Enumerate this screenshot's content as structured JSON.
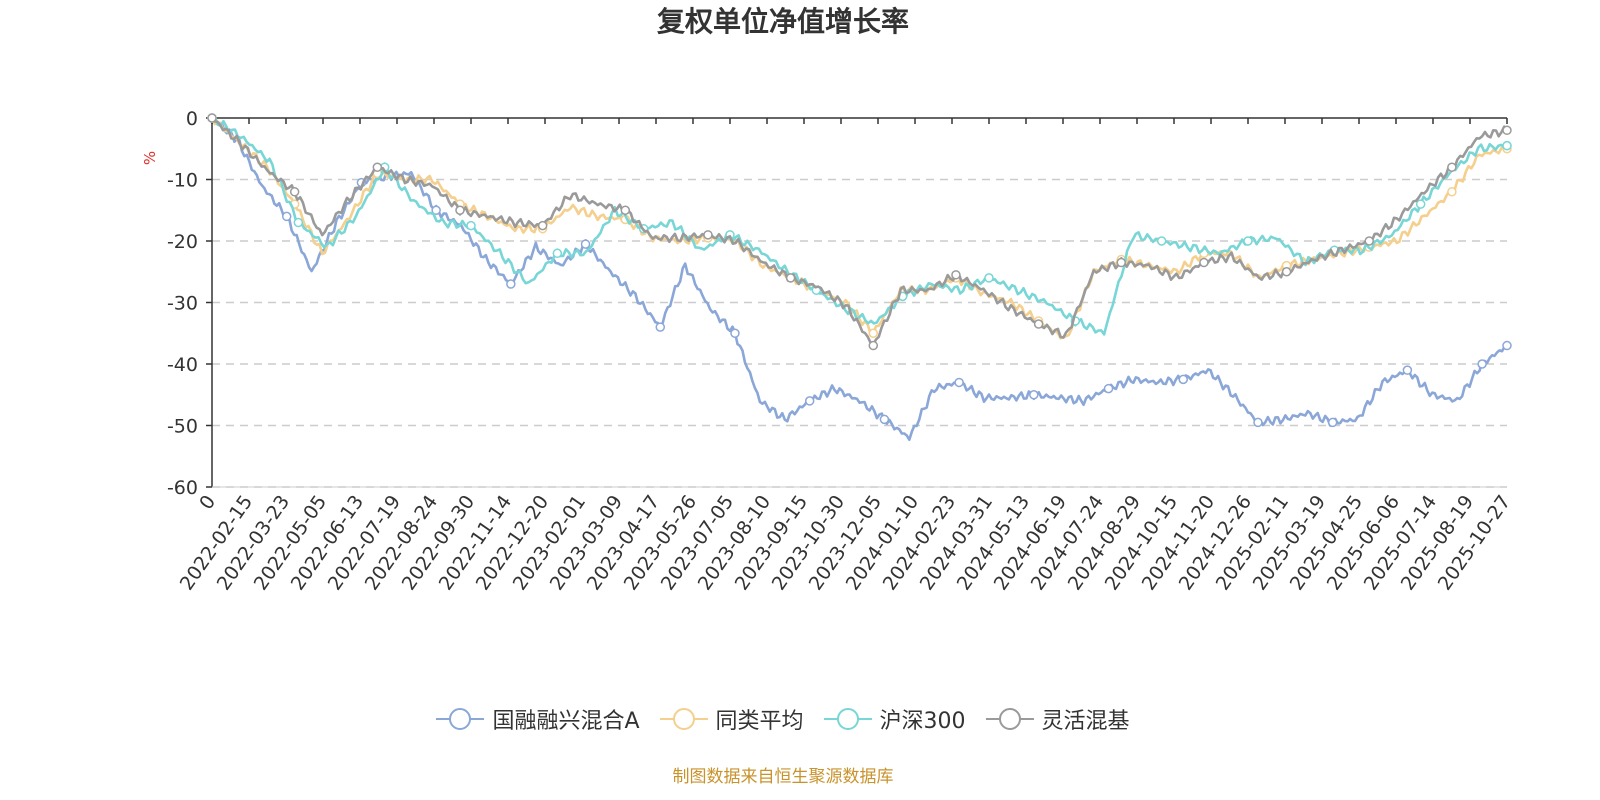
{
  "chart_data": {
    "type": "line",
    "title": "复权单位净值增长率",
    "ylabel": "%",
    "ylim": [
      -60,
      0
    ],
    "yticks": [
      "0",
      "-10",
      "-20",
      "-30",
      "-40",
      "-50",
      "-60"
    ],
    "grid": true,
    "legend_position": "bottom",
    "x_labels": [
      "0",
      "2022-02-15",
      "2022-03-23",
      "2022-05-05",
      "2022-06-13",
      "2022-07-19",
      "2022-08-24",
      "2022-09-30",
      "2022-11-14",
      "2022-12-20",
      "2023-02-01",
      "2023-03-09",
      "2023-04-17",
      "2023-05-26",
      "2023-07-05",
      "2023-08-10",
      "2023-09-15",
      "2023-10-30",
      "2023-12-05",
      "2024-01-10",
      "2024-02-23",
      "2024-03-31",
      "2024-05-13",
      "2024-06-19",
      "2024-07-24",
      "2024-08-29",
      "2024-10-15",
      "2024-11-20",
      "2024-12-26",
      "2025-02-11",
      "2025-03-19",
      "2025-04-25",
      "2025-06-06",
      "2025-07-14",
      "2025-08-19",
      "2025-10-27"
    ],
    "series": [
      {
        "name": "国融融兴混合A",
        "color": "#8ba7d8",
        "values": [
          0,
          -3.5,
          -11,
          -16,
          -25,
          -17,
          -10.5,
          -9.5,
          -9,
          -15,
          -17.5,
          -23,
          -27,
          -21,
          -24,
          -20.5,
          -25,
          -29,
          -34,
          -24,
          -31,
          -35,
          -46,
          -49,
          -46,
          -44,
          -46,
          -49,
          -52,
          -44,
          -43,
          -45.5,
          -45.5,
          -45,
          -45.5,
          -46,
          -44,
          -42.5,
          -43,
          -42.5,
          -41,
          -45,
          -49.5,
          -49,
          -48,
          -49.5,
          -49,
          -43,
          -41,
          -45,
          -46,
          -40,
          -37
        ]
      },
      {
        "name": "同类平均",
        "color": "#f5cf8d",
        "values": [
          0,
          -4,
          -8,
          -14,
          -22,
          -16,
          -9,
          -10,
          -10,
          -14,
          -16,
          -18,
          -18,
          -14.5,
          -16,
          -16.5,
          -19.5,
          -20,
          -19.5,
          -20,
          -24,
          -26,
          -28,
          -30,
          -35,
          -28,
          -28,
          -26,
          -28.5,
          -30,
          -33,
          -36,
          -25,
          -23,
          -24,
          -25,
          -22,
          -22,
          -26,
          -24,
          -23,
          -22,
          -21,
          -20,
          -16,
          -12,
          -6,
          -5
        ]
      },
      {
        "name": "沪深300",
        "color": "#78d6d6",
        "values": [
          0,
          -3,
          -7,
          -17,
          -21,
          -16,
          -8,
          -13.5,
          -17,
          -17.5,
          -22,
          -27,
          -22,
          -22,
          -15,
          -18,
          -17,
          -21.5,
          -19,
          -21.5,
          -25,
          -28,
          -31,
          -33.5,
          -29,
          -27,
          -28,
          -26,
          -28,
          -30,
          -33,
          -35,
          -19,
          -20,
          -21,
          -22,
          -20,
          -19.5,
          -23.5,
          -21.5,
          -21.5,
          -19,
          -14,
          -9,
          -5,
          -4.5
        ]
      },
      {
        "name": "灵活混基",
        "color": "#9a9a9a",
        "values": [
          0,
          -4,
          -8.5,
          -12,
          -19,
          -13,
          -8,
          -10,
          -11,
          -15,
          -16,
          -17,
          -17.5,
          -12.5,
          -14,
          -15,
          -19.5,
          -19.5,
          -19,
          -20,
          -23.5,
          -26,
          -27.5,
          -30.5,
          -37,
          -28,
          -28,
          -25.5,
          -28,
          -31,
          -33.5,
          -35.5,
          -25,
          -23.5,
          -24,
          -26,
          -23.5,
          -22.5,
          -26,
          -25,
          -23,
          -21.5,
          -20,
          -16.5,
          -12,
          -8,
          -3,
          -2
        ]
      }
    ]
  },
  "legend": [
    "国融融兴混合A",
    "同类平均",
    "沪深300",
    "灵活混基"
  ],
  "source_note": "制图数据来自恒生聚源数据库"
}
